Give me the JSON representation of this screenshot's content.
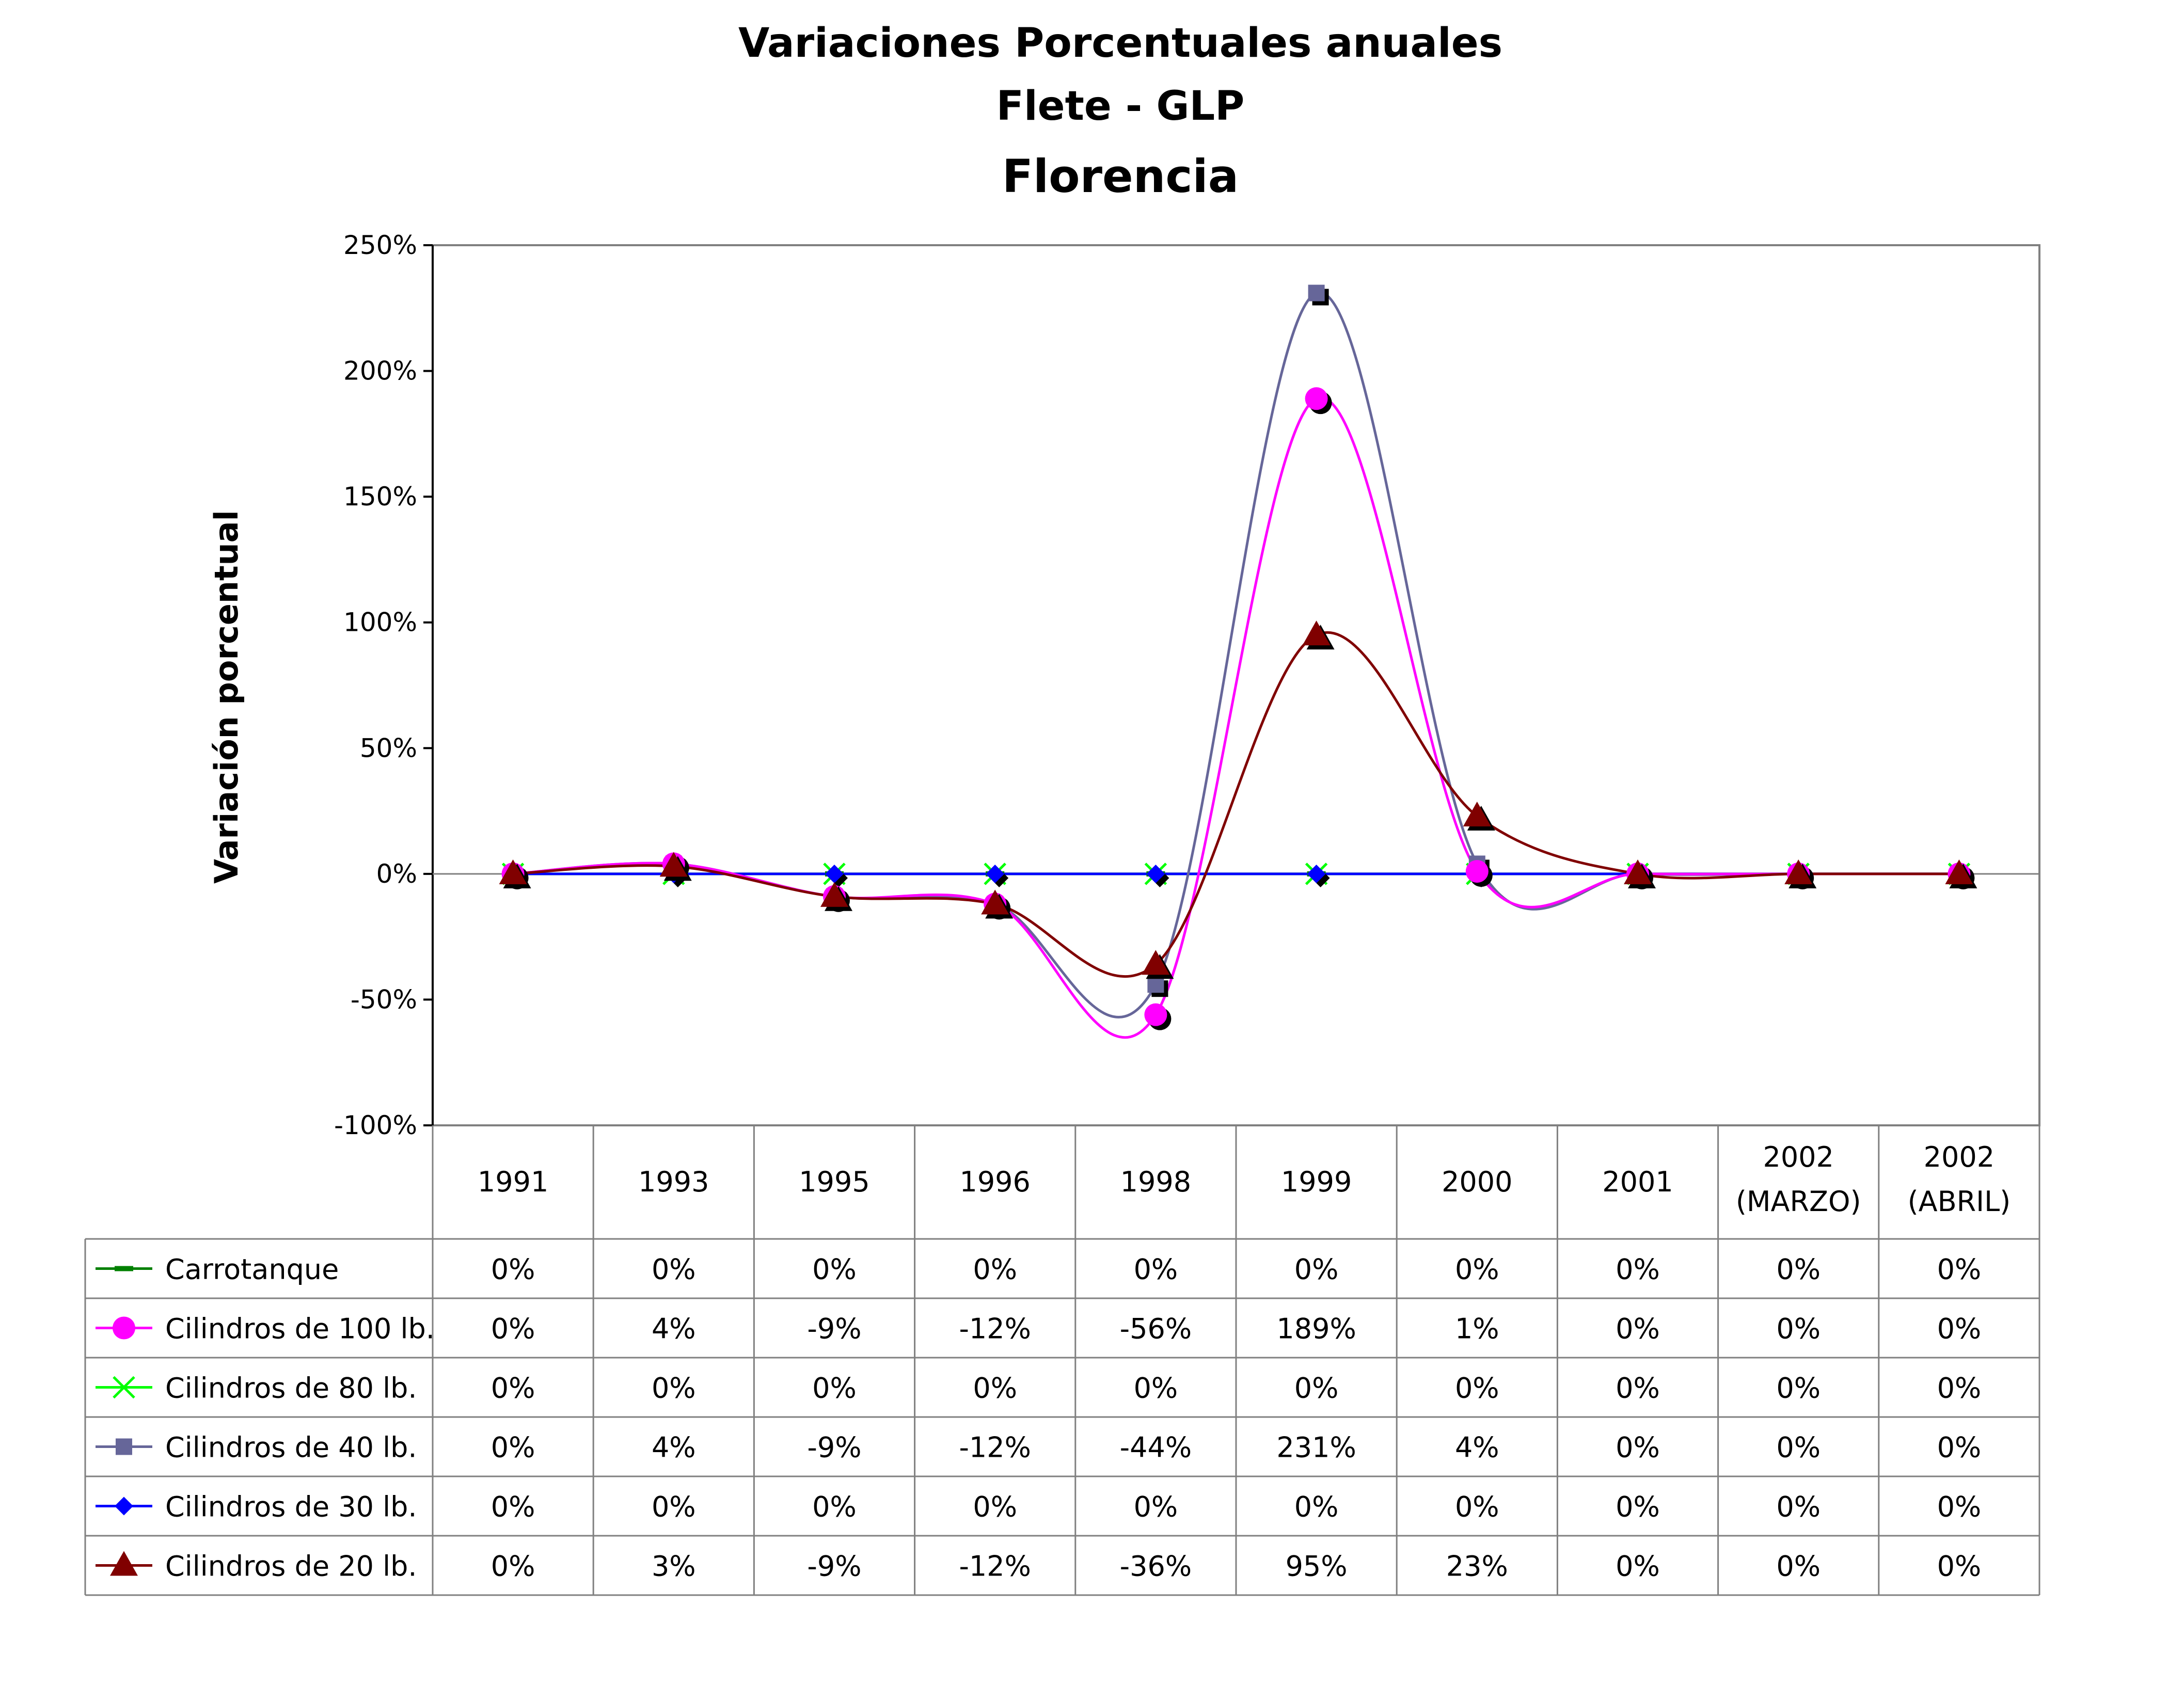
{
  "chart_data": {
    "type": "line",
    "title": "Variaciones Porcentuales anuales",
    "subtitle": "Flete - GLP",
    "subtitle2": "Florencia",
    "ylabel": "Variación porcentual",
    "xlabel": "",
    "ylim": [
      -100,
      250
    ],
    "yticks": [
      "250%",
      "200%",
      "150%",
      "100%",
      "50%",
      "0%",
      "-50%",
      "-100%"
    ],
    "ytick_values": [
      250,
      200,
      150,
      100,
      50,
      0,
      -50,
      -100
    ],
    "grid": false,
    "smooth": true,
    "categories": [
      [
        "1991"
      ],
      [
        "1993"
      ],
      [
        "1995"
      ],
      [
        "1996"
      ],
      [
        "1998"
      ],
      [
        "1999"
      ],
      [
        "2000"
      ],
      [
        "2001"
      ],
      [
        "2002",
        "(MARZO)"
      ],
      [
        "2002",
        "(ABRIL)"
      ]
    ],
    "series": [
      {
        "name": "Carrotanque",
        "color": "#008000",
        "marker": "dash",
        "values": [
          0,
          0,
          0,
          0,
          0,
          0,
          0,
          0,
          0,
          0
        ],
        "labels": [
          "0%",
          "0%",
          "0%",
          "0%",
          "0%",
          "0%",
          "0%",
          "0%",
          "0%",
          "0%"
        ]
      },
      {
        "name": "Cilindros de 100 lb.",
        "color": "#FF00FF",
        "marker": "circle",
        "values": [
          0,
          4,
          -9,
          -12,
          -56,
          189,
          1,
          0,
          0,
          0
        ],
        "labels": [
          "0%",
          "4%",
          "-9%",
          "-12%",
          "-56%",
          "189%",
          "1%",
          "0%",
          "0%",
          "0%"
        ]
      },
      {
        "name": "Cilindros de 80 lb.",
        "color": "#00FF00",
        "marker": "x",
        "values": [
          0,
          0,
          0,
          0,
          0,
          0,
          0,
          0,
          0,
          0
        ],
        "labels": [
          "0%",
          "0%",
          "0%",
          "0%",
          "0%",
          "0%",
          "0%",
          "0%",
          "0%",
          "0%"
        ]
      },
      {
        "name": "Cilindros de 40 lb.",
        "color": "#666699",
        "marker": "square",
        "values": [
          0,
          4,
          -9,
          -12,
          -44,
          231,
          4,
          0,
          0,
          0
        ],
        "labels": [
          "0%",
          "4%",
          "-9%",
          "-12%",
          "-44%",
          "231%",
          "4%",
          "0%",
          "0%",
          "0%"
        ]
      },
      {
        "name": "Cilindros de 30 lb.",
        "color": "#0000FF",
        "marker": "diamond",
        "values": [
          0,
          0,
          0,
          0,
          0,
          0,
          0,
          0,
          0,
          0
        ],
        "labels": [
          "0%",
          "0%",
          "0%",
          "0%",
          "0%",
          "0%",
          "0%",
          "0%",
          "0%",
          "0%"
        ]
      },
      {
        "name": "Cilindros de 20 lb.",
        "color": "#800000",
        "marker": "triangle",
        "values": [
          0,
          3,
          -9,
          -12,
          -36,
          95,
          23,
          0,
          0,
          0
        ],
        "labels": [
          "0%",
          "3%",
          "-9%",
          "-12%",
          "-36%",
          "95%",
          "23%",
          "0%",
          "0%",
          "0%"
        ]
      }
    ]
  }
}
